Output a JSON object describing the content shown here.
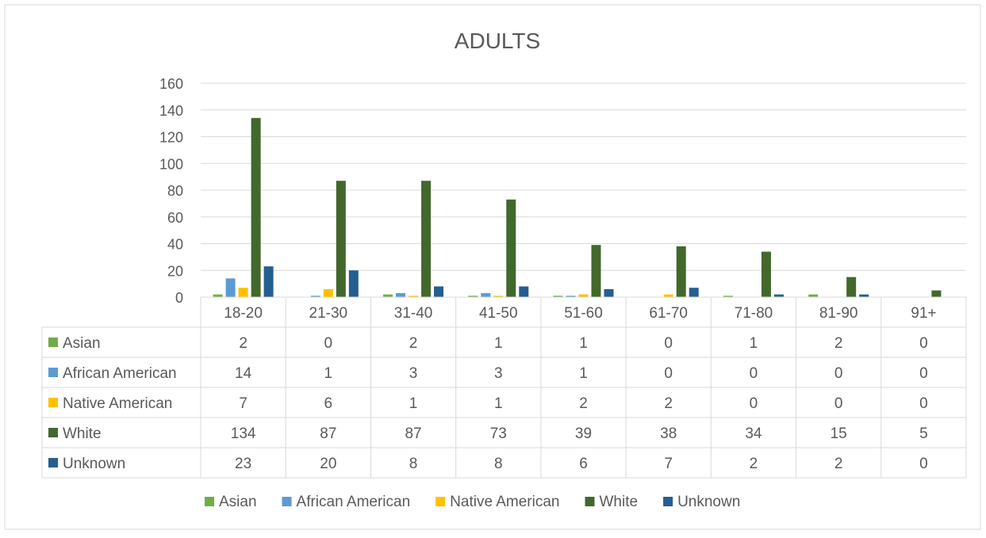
{
  "chart_data": {
    "type": "bar",
    "title": "ADULTS",
    "categories": [
      "18-20",
      "21-30",
      "31-40",
      "41-50",
      "51-60",
      "61-70",
      "71-80",
      "81-90",
      "91+"
    ],
    "series": [
      {
        "name": "Asian",
        "color": "#70AD47",
        "values": [
          2,
          0,
          2,
          1,
          1,
          0,
          1,
          2,
          0
        ]
      },
      {
        "name": "African American",
        "color": "#5B9BD5",
        "values": [
          14,
          1,
          3,
          3,
          1,
          0,
          0,
          0,
          0
        ]
      },
      {
        "name": "Native American",
        "color": "#FFC000",
        "values": [
          7,
          6,
          1,
          1,
          2,
          2,
          0,
          0,
          0
        ]
      },
      {
        "name": "White",
        "color": "#43682B",
        "values": [
          134,
          87,
          87,
          73,
          39,
          38,
          34,
          15,
          5
        ]
      },
      {
        "name": "Unknown",
        "color": "#255E91",
        "values": [
          23,
          20,
          8,
          8,
          6,
          7,
          2,
          2,
          0
        ]
      }
    ],
    "ylim": [
      0,
      160
    ],
    "yticks": [
      0,
      20,
      40,
      60,
      80,
      100,
      120,
      140,
      160
    ],
    "grid": true,
    "data_table": true,
    "legend_position": "bottom"
  }
}
